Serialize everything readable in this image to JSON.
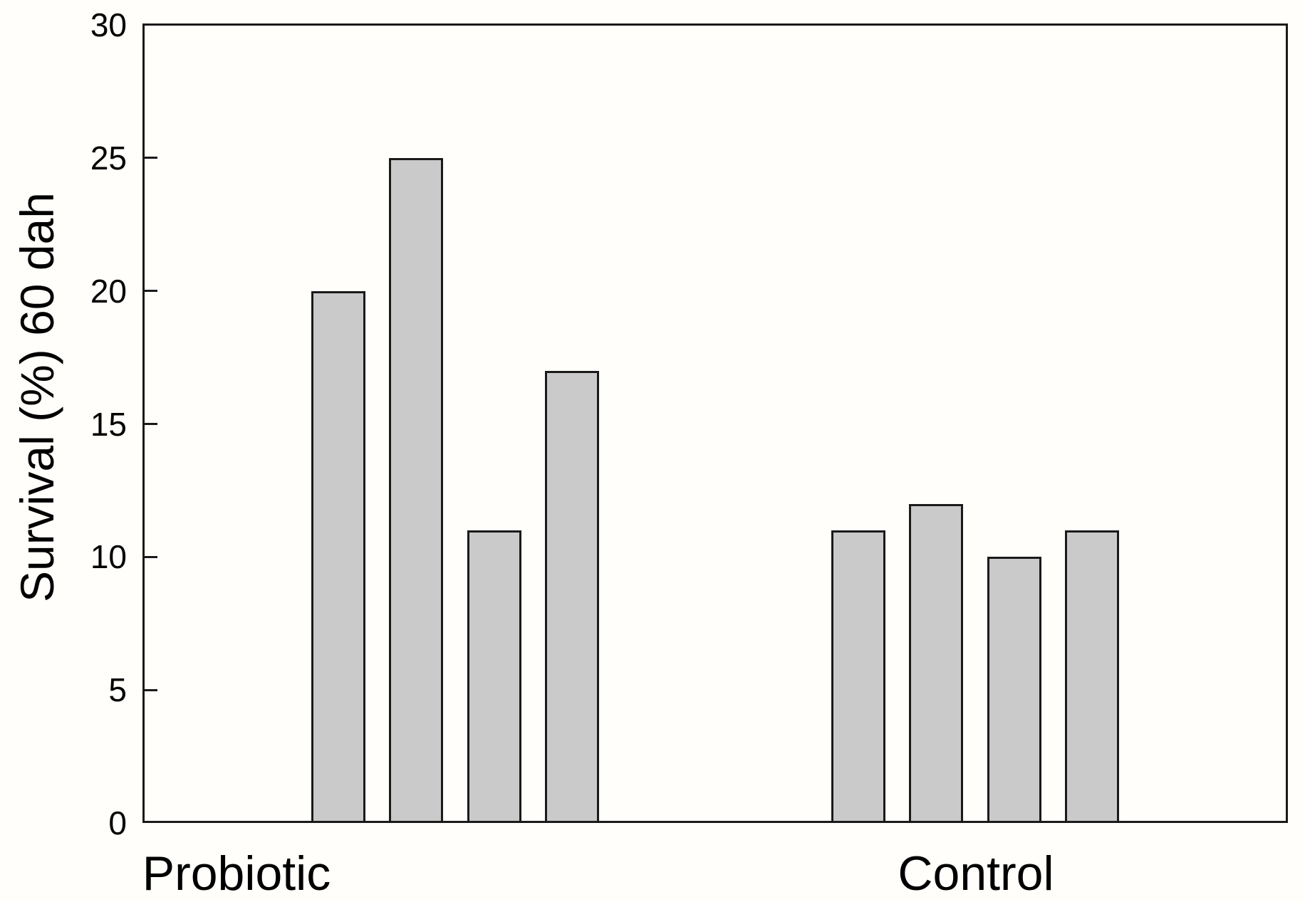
{
  "chart_data": {
    "type": "bar",
    "title": "",
    "ylabel": "Survival (%) 60 dah",
    "xlabel": "",
    "ylim": [
      0,
      30
    ],
    "yticks": [
      0,
      5,
      10,
      15,
      20,
      25,
      30
    ],
    "grid": false,
    "legend": "none",
    "categories": [
      "Probiotic",
      "Control"
    ],
    "groups": [
      {
        "label": "Probiotic",
        "values": [
          20,
          25,
          11,
          17
        ]
      },
      {
        "label": "Control",
        "values": [
          11,
          12,
          10,
          11
        ]
      }
    ],
    "colors": {
      "bar_fill": "#cacaca",
      "bar_stroke": "#1a1a1a",
      "axis": "#1a1a1a",
      "text": "#000000",
      "background": "#fffefa"
    }
  }
}
